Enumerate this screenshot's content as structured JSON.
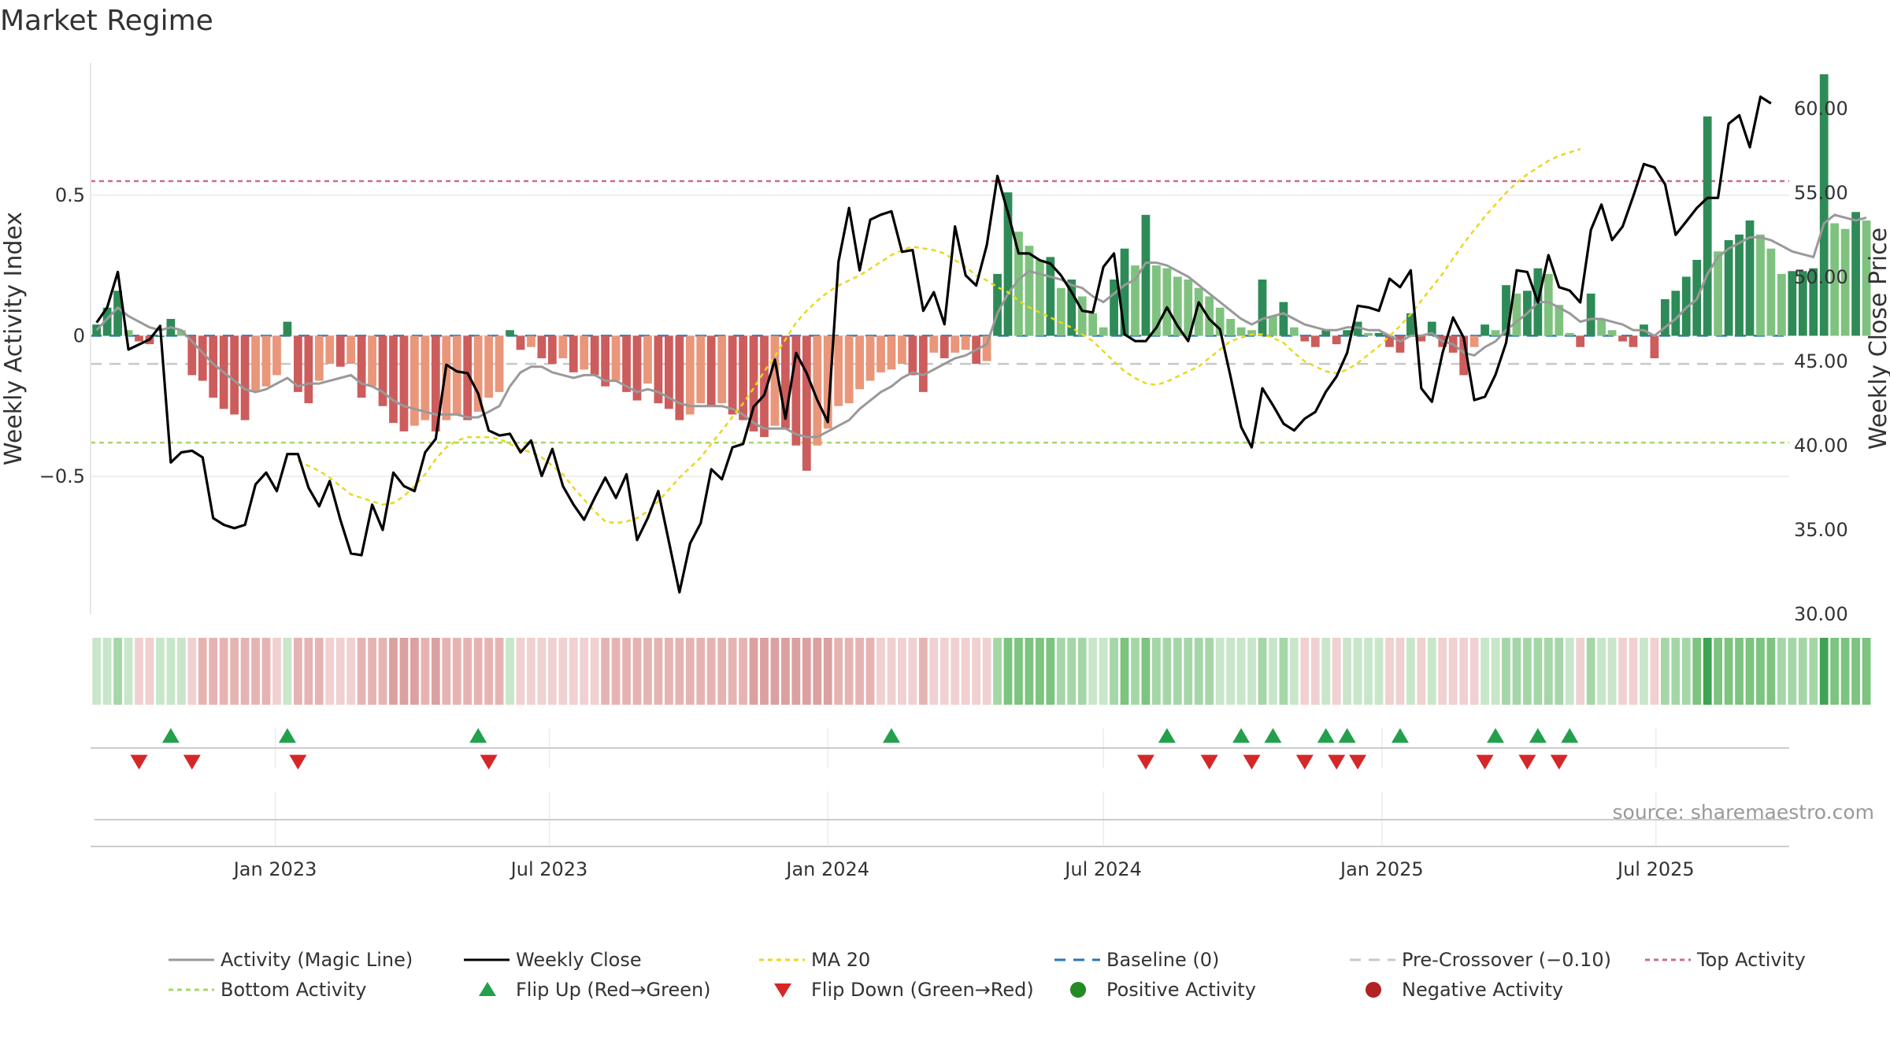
{
  "title": "Market Regime",
  "source": "source: sharemaestro.com",
  "y_left_label": "Weekly Activity Index",
  "y_right_label": "Weekly Close Price",
  "y_left_ticks": [
    "0.5",
    "0",
    "−0.5"
  ],
  "y_right_ticks": [
    "60.00",
    "55.00",
    "50.00",
    "45.00",
    "40.00",
    "35.00",
    "30.00"
  ],
  "x_ticks": [
    "Jan 2023",
    "Jul 2023",
    "Jan 2024",
    "Jul 2024",
    "Jan 2025",
    "Jul 2025"
  ],
  "legend": [
    {
      "label": "Activity (Magic Line)",
      "symbol": "line",
      "color": "#999999",
      "dash": ""
    },
    {
      "label": "Weekly Close",
      "symbol": "line",
      "color": "#000000",
      "dash": ""
    },
    {
      "label": "MA 20",
      "symbol": "line",
      "color": "#e8d81f",
      "dash": "6,5"
    },
    {
      "label": "Baseline (0)",
      "symbol": "line",
      "color": "#2a77b5",
      "dash": "14,10"
    },
    {
      "label": "Pre-Crossover (−0.10)",
      "symbol": "line",
      "color": "#c8c8c8",
      "dash": "14,10"
    },
    {
      "label": "Top Activity",
      "symbol": "line",
      "color": "#d16a82",
      "dash": "6,5"
    },
    {
      "label": "Bottom Activity",
      "symbol": "line",
      "color": "#a8d56e",
      "dash": "6,5"
    },
    {
      "label": "Flip Up (Red→Green)",
      "symbol": "tri-up",
      "color": "#22a04b",
      "dash": ""
    },
    {
      "label": "Flip Down (Green→Red)",
      "symbol": "tri-down",
      "color": "#d62728",
      "dash": ""
    },
    {
      "label": "Positive Activity",
      "symbol": "dot",
      "color": "#228b22",
      "dash": ""
    },
    {
      "label": "Negative Activity",
      "symbol": "dot",
      "color": "#b22222",
      "dash": ""
    }
  ],
  "colors": {
    "pos_dark": "#2e8b57",
    "pos_light": "#7fc27f",
    "neg_dark": "#cd5c5c",
    "neg_light": "#e9967a",
    "close": "#000000",
    "magic": "#999999",
    "ma20": "#e8d81f",
    "baseline": "#2a77b5",
    "pre": "#c8c8c8",
    "top": "#d16a82",
    "bottom": "#a8d56e",
    "flip_up": "#22a04b",
    "flip_down": "#d62728"
  },
  "chart_data": {
    "type": "bar",
    "x_start": "2022-09-05",
    "x_step_days": 7,
    "ylim_left": [
      -0.99,
      0.97
    ],
    "ylim_right": [
      30,
      62.7
    ],
    "x_axis_range": [
      "2022-09-01",
      "2025-09-27"
    ],
    "reference_lines": {
      "top_activity": 0.55,
      "bottom_activity": -0.38,
      "pre_crossover": -0.1,
      "baseline": 0
    },
    "grid": true,
    "legend_position": "bottom",
    "series": [
      {
        "name": "Weekly Activity Index",
        "kind": "bar",
        "values": [
          0.04,
          0.1,
          0.16,
          0.02,
          -0.02,
          -0.03,
          0,
          0.06,
          0.02,
          -0.14,
          -0.16,
          -0.22,
          -0.26,
          -0.28,
          -0.3,
          -0.2,
          -0.18,
          -0.14,
          0.05,
          -0.2,
          -0.24,
          -0.16,
          -0.1,
          -0.11,
          -0.1,
          -0.22,
          -0.18,
          -0.25,
          -0.31,
          -0.34,
          -0.32,
          -0.3,
          -0.34,
          -0.3,
          -0.28,
          -0.3,
          -0.27,
          -0.22,
          -0.2,
          0.02,
          -0.05,
          -0.04,
          -0.08,
          -0.1,
          -0.08,
          -0.13,
          -0.12,
          -0.14,
          -0.18,
          -0.16,
          -0.2,
          -0.23,
          -0.17,
          -0.24,
          -0.26,
          -0.3,
          -0.28,
          -0.24,
          -0.25,
          -0.24,
          -0.28,
          -0.3,
          -0.34,
          -0.36,
          -0.32,
          -0.33,
          -0.39,
          -0.48,
          -0.39,
          -0.33,
          -0.25,
          -0.24,
          -0.19,
          -0.16,
          -0.13,
          -0.12,
          -0.1,
          -0.14,
          -0.2,
          -0.06,
          -0.08,
          -0.06,
          -0.05,
          -0.1,
          -0.09,
          0.22,
          0.51,
          0.37,
          0.32,
          0.27,
          0.28,
          0.17,
          0.2,
          0.14,
          0.08,
          0.03,
          0.2,
          0.31,
          0.25,
          0.43,
          0.25,
          0.24,
          0.21,
          0.2,
          0.17,
          0.14,
          0.1,
          0.06,
          0.03,
          0.02,
          0.2,
          0.07,
          0.12,
          0.03,
          -0.02,
          -0.04,
          0.02,
          -0.03,
          0.02,
          0.05,
          0.01,
          0.01,
          -0.04,
          -0.06,
          0.08,
          -0.02,
          0.05,
          -0.04,
          -0.06,
          -0.14,
          -0.04,
          0.04,
          0.02,
          0.18,
          0.15,
          0.16,
          0.24,
          0.22,
          0.11,
          0.01,
          -0.04,
          0.15,
          0.06,
          0.02,
          -0.02,
          -0.04,
          0.04,
          -0.08,
          0.13,
          0.16,
          0.21,
          0.27,
          0.78,
          0.3,
          0.34,
          0.36,
          0.41,
          0.36,
          0.31,
          0.22,
          0.23,
          0.23,
          0.24,
          0.93,
          0.4,
          0.38,
          0.44,
          0.41
        ]
      },
      {
        "name": "Weekly Close",
        "kind": "line",
        "axis": "right",
        "values": [
          47.3,
          48.2,
          50.3,
          45.7,
          46,
          46.3,
          47.1,
          39,
          39.6,
          39.7,
          39.3,
          35.7,
          35.3,
          35.1,
          35.3,
          37.7,
          38.4,
          37.3,
          39.5,
          39.5,
          37.5,
          36.4,
          37.9,
          35.6,
          33.6,
          33.5,
          36.5,
          35,
          38.4,
          37.6,
          37.3,
          39.6,
          40.4,
          44.8,
          44.4,
          44.3,
          43.1,
          40.9,
          40.6,
          40.7,
          39.6,
          40.3,
          38.2,
          39.8,
          37.6,
          36.5,
          35.6,
          36.9,
          38.1,
          36.9,
          38.3,
          34.4,
          35.7,
          37.3,
          34.3,
          31.3,
          34.2,
          35.4,
          38.6,
          38,
          39.9,
          40.1,
          42.3,
          43,
          45.1,
          41.6,
          45.5,
          44.3,
          42.7,
          41.4,
          50.9,
          54.1,
          50.4,
          53.4,
          53.7,
          53.9,
          51.5,
          51.6,
          48,
          49.1,
          47.2,
          53,
          50.1,
          49.5,
          51.9,
          56,
          53.8,
          51.4,
          51.4,
          51,
          50.8,
          50.1,
          49.1,
          48,
          47.9,
          50.6,
          51.4,
          46.6,
          46.2,
          46.2,
          47,
          48.2,
          47.1,
          46.2,
          48.5,
          47.5,
          46.9,
          44.1,
          41.1,
          39.9,
          43.4,
          42.4,
          41.3,
          40.9,
          41.6,
          42,
          43.2,
          44.1,
          45.5,
          48.3,
          48.2,
          48,
          49.9,
          49.4,
          50.4,
          43.4,
          42.6,
          45.5,
          47.6,
          46.4,
          42.7,
          42.9,
          44.2,
          46.1,
          50.4,
          50.3,
          48.5,
          51.3,
          49.4,
          49.2,
          48.5,
          52.8,
          54.3,
          52.2,
          53,
          54.8,
          56.7,
          56.5,
          55.5,
          52.5,
          53.3,
          54.1,
          54.7,
          54.7,
          59.1,
          59.6,
          57.7,
          60.7,
          60.3
        ]
      },
      {
        "name": "Activity (Magic Line)",
        "kind": "line",
        "axis": "left",
        "values": [
          0.02,
          0.06,
          0.1,
          0.07,
          0.05,
          0.03,
          0.02,
          0.03,
          0.02,
          -0.02,
          -0.06,
          -0.1,
          -0.13,
          -0.16,
          -0.19,
          -0.2,
          -0.19,
          -0.17,
          -0.15,
          -0.18,
          -0.17,
          -0.17,
          -0.16,
          -0.15,
          -0.14,
          -0.17,
          -0.18,
          -0.2,
          -0.23,
          -0.25,
          -0.26,
          -0.27,
          -0.28,
          -0.28,
          -0.28,
          -0.29,
          -0.29,
          -0.27,
          -0.25,
          -0.18,
          -0.13,
          -0.11,
          -0.11,
          -0.13,
          -0.14,
          -0.15,
          -0.14,
          -0.14,
          -0.16,
          -0.16,
          -0.18,
          -0.2,
          -0.19,
          -0.2,
          -0.22,
          -0.24,
          -0.25,
          -0.25,
          -0.25,
          -0.25,
          -0.26,
          -0.28,
          -0.31,
          -0.33,
          -0.33,
          -0.33,
          -0.35,
          -0.36,
          -0.36,
          -0.34,
          -0.32,
          -0.3,
          -0.26,
          -0.23,
          -0.2,
          -0.18,
          -0.15,
          -0.13,
          -0.14,
          -0.12,
          -0.1,
          -0.08,
          -0.07,
          -0.05,
          -0.03,
          0.08,
          0.15,
          0.2,
          0.23,
          0.22,
          0.21,
          0.2,
          0.18,
          0.17,
          0.14,
          0.12,
          0.15,
          0.18,
          0.2,
          0.26,
          0.26,
          0.25,
          0.23,
          0.21,
          0.18,
          0.15,
          0.12,
          0.09,
          0.06,
          0.04,
          0.06,
          0.07,
          0.08,
          0.06,
          0.04,
          0.03,
          0.02,
          0.02,
          0.03,
          0.03,
          0.02,
          0.02,
          0,
          -0.02,
          0,
          0,
          0.01,
          -0.02,
          -0.03,
          -0.06,
          -0.07,
          -0.04,
          -0.02,
          0.02,
          0.05,
          0.08,
          0.12,
          0.12,
          0.1,
          0.08,
          0.05,
          0.06,
          0.06,
          0.05,
          0.04,
          0.02,
          0.02,
          0,
          0.03,
          0.06,
          0.1,
          0.13,
          0.22,
          0.28,
          0.31,
          0.33,
          0.35,
          0.35,
          0.34,
          0.32,
          0.3,
          0.29,
          0.28,
          0.4,
          0.43,
          0.42,
          0.41,
          0.42
        ]
      },
      {
        "name": "MA 20",
        "kind": "line",
        "axis": "right",
        "values": [
          null,
          null,
          null,
          null,
          null,
          null,
          null,
          null,
          null,
          null,
          null,
          null,
          null,
          null,
          null,
          null,
          null,
          null,
          null,
          39.1,
          38.8,
          38.5,
          38.1,
          37.6,
          37.1,
          36.9,
          36.7,
          36.5,
          36.6,
          37,
          37.6,
          38.3,
          39.2,
          39.9,
          40.3,
          40.5,
          40.5,
          40.5,
          40.4,
          40.1,
          39.8,
          39.6,
          39.3,
          38.8,
          38.3,
          37.5,
          36.8,
          36.1,
          35.5,
          35.4,
          35.5,
          35.7,
          36.1,
          36.7,
          37.4,
          38.1,
          38.7,
          39.3,
          40.1,
          40.9,
          41.7,
          42.5,
          43.4,
          44.4,
          45.3,
          46.3,
          47.3,
          48,
          48.6,
          49.1,
          49.5,
          49.8,
          50.1,
          50.5,
          50.9,
          51.3,
          51.6,
          51.8,
          51.7,
          51.6,
          51.4,
          51,
          50.6,
          50.1,
          49.8,
          49.4,
          49.1,
          48.6,
          48.2,
          47.9,
          47.6,
          47.3,
          47,
          46.6,
          46.2,
          45.6,
          45,
          44.4,
          44,
          43.7,
          43.6,
          43.8,
          44.1,
          44.4,
          44.7,
          45.2,
          45.7,
          46.2,
          46.4,
          46.6,
          46.6,
          46.4,
          46.1,
          45.5,
          45,
          44.7,
          44.4,
          44.3,
          44.5,
          44.9,
          45.4,
          45.9,
          46.5,
          47.1,
          47.8,
          48.6,
          49.4,
          50.2,
          51.1,
          52,
          52.8,
          53.6,
          54.3,
          55,
          55.6,
          56.1,
          56.5,
          56.9,
          57.2,
          57.4,
          57.6
        ]
      }
    ],
    "regime_strip": {
      "positive_shades": [
        "#c8e6c9",
        "#a5d6a7",
        "#7cc47f",
        "#3fa354"
      ],
      "negative_shades": [
        "#f0d0d0",
        "#e6b3b3",
        "#dba0a0"
      ]
    },
    "flip_up_dates": [
      "2022-10-24",
      "2023-01-09",
      "2023-05-15",
      "2024-02-12",
      "2024-08-12",
      "2024-09-30",
      "2024-10-21",
      "2024-11-25",
      "2024-12-09",
      "2025-01-13",
      "2025-03-17",
      "2025-04-14",
      "2025-05-05"
    ],
    "flip_down_dates": [
      "2022-10-03",
      "2022-11-07",
      "2023-01-16",
      "2023-05-22",
      "2024-07-29",
      "2024-09-09",
      "2024-10-07",
      "2024-11-11",
      "2024-12-02",
      "2024-12-16",
      "2025-03-10",
      "2025-04-07",
      "2025-04-28"
    ]
  }
}
